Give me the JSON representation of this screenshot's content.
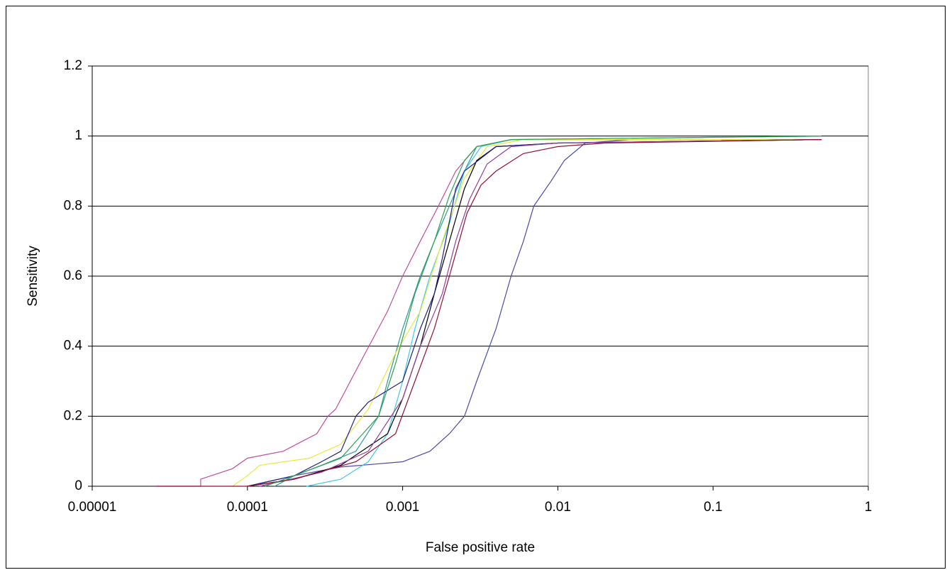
{
  "chart_data": {
    "type": "line",
    "x_label": "False positive rate",
    "y_label": "Sensitivity",
    "xscale": "log",
    "xlim": [
      1e-05,
      1
    ],
    "xticks": [
      1e-05,
      0.0001,
      0.001,
      0.01,
      0.1,
      1
    ],
    "ylim": [
      0,
      1.2
    ],
    "yticks": [
      0,
      0.2,
      0.4,
      0.6,
      0.8,
      1,
      1.2
    ],
    "grid": true,
    "series": [
      {
        "color": "#c0509a",
        "x": [
          2.6e-05,
          5e-05,
          5e-05,
          8e-05,
          0.0001,
          0.00017,
          0.00028,
          0.00033,
          0.00037,
          0.0005,
          0.0008,
          0.001,
          0.0013,
          0.0017,
          0.0022,
          0.003,
          0.005,
          0.5
        ],
        "values": [
          0,
          0,
          0.02,
          0.05,
          0.08,
          0.1,
          0.15,
          0.2,
          0.22,
          0.33,
          0.5,
          0.6,
          0.7,
          0.8,
          0.9,
          0.97,
          0.99,
          0.99
        ]
      },
      {
        "color": "#4a4aa8",
        "x": [
          0.0001,
          0.0002,
          0.0004,
          0.001,
          0.0015,
          0.002,
          0.0025,
          0.003,
          0.004,
          0.005,
          0.006,
          0.007,
          0.009,
          0.011,
          0.015,
          0.03,
          0.5
        ],
        "values": [
          0,
          0.03,
          0.055,
          0.07,
          0.1,
          0.15,
          0.2,
          0.3,
          0.45,
          0.6,
          0.7,
          0.8,
          0.87,
          0.93,
          0.98,
          0.99,
          0.99
        ]
      },
      {
        "color": "#2a9a9a",
        "x": [
          0.00015,
          0.0002,
          0.0003,
          0.0005,
          0.0007,
          0.0008,
          0.001,
          0.0013,
          0.0016,
          0.002,
          0.0025,
          0.003,
          0.005,
          0.5
        ],
        "values": [
          0,
          0.03,
          0.06,
          0.1,
          0.2,
          0.3,
          0.45,
          0.6,
          0.7,
          0.8,
          0.9,
          0.97,
          0.99,
          1
        ]
      },
      {
        "color": "#40c8e8",
        "x": [
          0.00024,
          0.0004,
          0.0006,
          0.0008,
          0.001,
          0.0012,
          0.0015,
          0.002,
          0.0025,
          0.0032,
          0.005,
          0.5
        ],
        "values": [
          0,
          0.02,
          0.07,
          0.15,
          0.3,
          0.45,
          0.6,
          0.75,
          0.9,
          0.97,
          0.99,
          0.99
        ]
      },
      {
        "color": "#e8e840",
        "x": [
          8e-05,
          0.0001,
          0.00012,
          0.00025,
          0.0004,
          0.0006,
          0.0009,
          0.0013,
          0.0018,
          0.0025,
          0.0035,
          0.006,
          0.5
        ],
        "values": [
          0,
          0.03,
          0.06,
          0.08,
          0.12,
          0.22,
          0.38,
          0.5,
          0.7,
          0.88,
          0.97,
          0.99,
          0.99
        ]
      },
      {
        "color": "#000000",
        "x": [
          0.0001,
          0.0002,
          0.0004,
          0.0008,
          0.001,
          0.0013,
          0.0016,
          0.002,
          0.0025,
          0.003,
          0.004,
          0.01,
          0.5
        ],
        "values": [
          0,
          0.02,
          0.06,
          0.15,
          0.25,
          0.4,
          0.55,
          0.7,
          0.85,
          0.93,
          0.97,
          0.98,
          0.99
        ]
      },
      {
        "color": "#202080",
        "x": [
          0.0001,
          0.0002,
          0.0003,
          0.0004,
          0.0005,
          0.0006,
          0.001,
          0.0013,
          0.0016,
          0.0018,
          0.0022,
          0.0025,
          0.004,
          0.01,
          0.5
        ],
        "values": [
          0,
          0.03,
          0.07,
          0.1,
          0.2,
          0.24,
          0.3,
          0.45,
          0.55,
          0.65,
          0.85,
          0.9,
          0.97,
          0.98,
          0.99
        ]
      },
      {
        "color": "#9040a0",
        "x": [
          0.00012,
          0.0003,
          0.0006,
          0.001,
          0.0013,
          0.0018,
          0.0022,
          0.0027,
          0.0035,
          0.005,
          0.01,
          0.5
        ],
        "values": [
          0,
          0.04,
          0.1,
          0.25,
          0.4,
          0.55,
          0.7,
          0.82,
          0.92,
          0.97,
          0.98,
          0.99
        ]
      },
      {
        "color": "#901030",
        "x": [
          2.5e-05,
          0.0001,
          0.0002,
          0.0005,
          0.0009,
          0.0012,
          0.0016,
          0.002,
          0.0026,
          0.0032,
          0.004,
          0.006,
          0.01,
          0.02,
          0.5
        ],
        "values": [
          0,
          0,
          0.02,
          0.07,
          0.15,
          0.3,
          0.45,
          0.6,
          0.78,
          0.86,
          0.9,
          0.95,
          0.97,
          0.98,
          0.99
        ]
      },
      {
        "color": "#30a050",
        "x": [
          0.00013,
          0.0002,
          0.0004,
          0.0007,
          0.0009,
          0.0012,
          0.0016,
          0.002,
          0.0025,
          0.003,
          0.005,
          0.5
        ],
        "values": [
          0,
          0.03,
          0.08,
          0.2,
          0.35,
          0.55,
          0.7,
          0.83,
          0.93,
          0.97,
          0.99,
          1
        ]
      }
    ]
  }
}
